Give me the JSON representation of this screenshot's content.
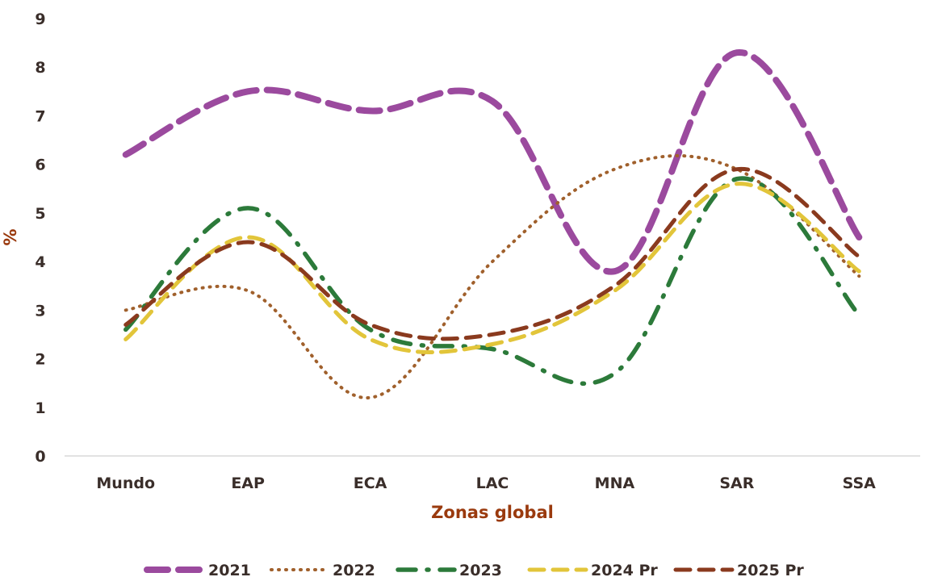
{
  "chart_data": {
    "type": "line",
    "categories": [
      "Mundo",
      "EAP",
      "ECA",
      "LAC",
      "MNA",
      "SAR",
      "SSA"
    ],
    "xlabel": "Zonas global",
    "ylabel": "%",
    "ylim": [
      0,
      9
    ],
    "yticks": [
      "0",
      "1",
      "2",
      "3",
      "4",
      "5",
      "6",
      "7",
      "8",
      "9"
    ],
    "grid": false,
    "legend_position": "bottom",
    "series": [
      {
        "name": "2021",
        "values": [
          6.2,
          7.5,
          7.1,
          7.3,
          3.8,
          8.3,
          4.5
        ],
        "color": "#9b4a9e",
        "style": "long-dash"
      },
      {
        "name": "2022",
        "values": [
          3.0,
          3.4,
          1.2,
          4.0,
          5.9,
          5.9,
          3.7
        ],
        "color": "#a0602c",
        "style": "dotted"
      },
      {
        "name": "2023",
        "values": [
          2.6,
          5.1,
          2.6,
          2.2,
          1.7,
          5.7,
          2.9
        ],
        "color": "#2c7a3a",
        "style": "dash-dot"
      },
      {
        "name": "2024 Pr",
        "values": [
          2.4,
          4.5,
          2.4,
          2.3,
          3.4,
          5.6,
          3.8
        ],
        "color": "#e2c53a",
        "style": "dash"
      },
      {
        "name": "2025 Pr",
        "values": [
          2.7,
          4.4,
          2.7,
          2.5,
          3.5,
          5.9,
          4.1
        ],
        "color": "#8a3a1e",
        "style": "dash"
      }
    ]
  }
}
